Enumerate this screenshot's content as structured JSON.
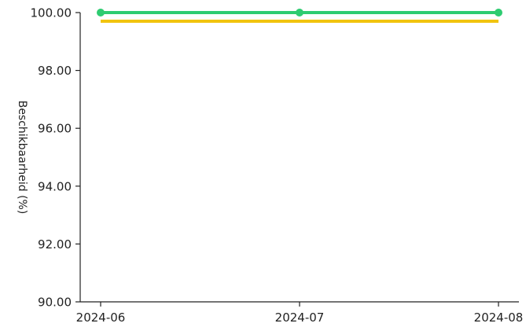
{
  "chart_data": {
    "type": "line",
    "title": "",
    "xlabel": "",
    "ylabel": "Beschikbaarheid (%)",
    "categories": [
      "2024-06",
      "2024-07",
      "2024-08"
    ],
    "x_tick_labels": [
      "2024-06",
      "2024-07",
      "2024-08"
    ],
    "y_tick_labels": [
      "90.00",
      "92.00",
      "94.00",
      "96.00",
      "98.00",
      "100.00"
    ],
    "y_ticks": [
      90,
      92,
      94,
      96,
      98,
      100
    ],
    "ylim": [
      90,
      100
    ],
    "grid": false,
    "series": [
      {
        "values": [
          100.0,
          100.0,
          100.0
        ],
        "color": "#2ecc71",
        "markers": true
      },
      {
        "values": [
          99.7,
          99.7,
          99.7
        ],
        "color": "#f1c40f",
        "markers": false
      }
    ]
  }
}
